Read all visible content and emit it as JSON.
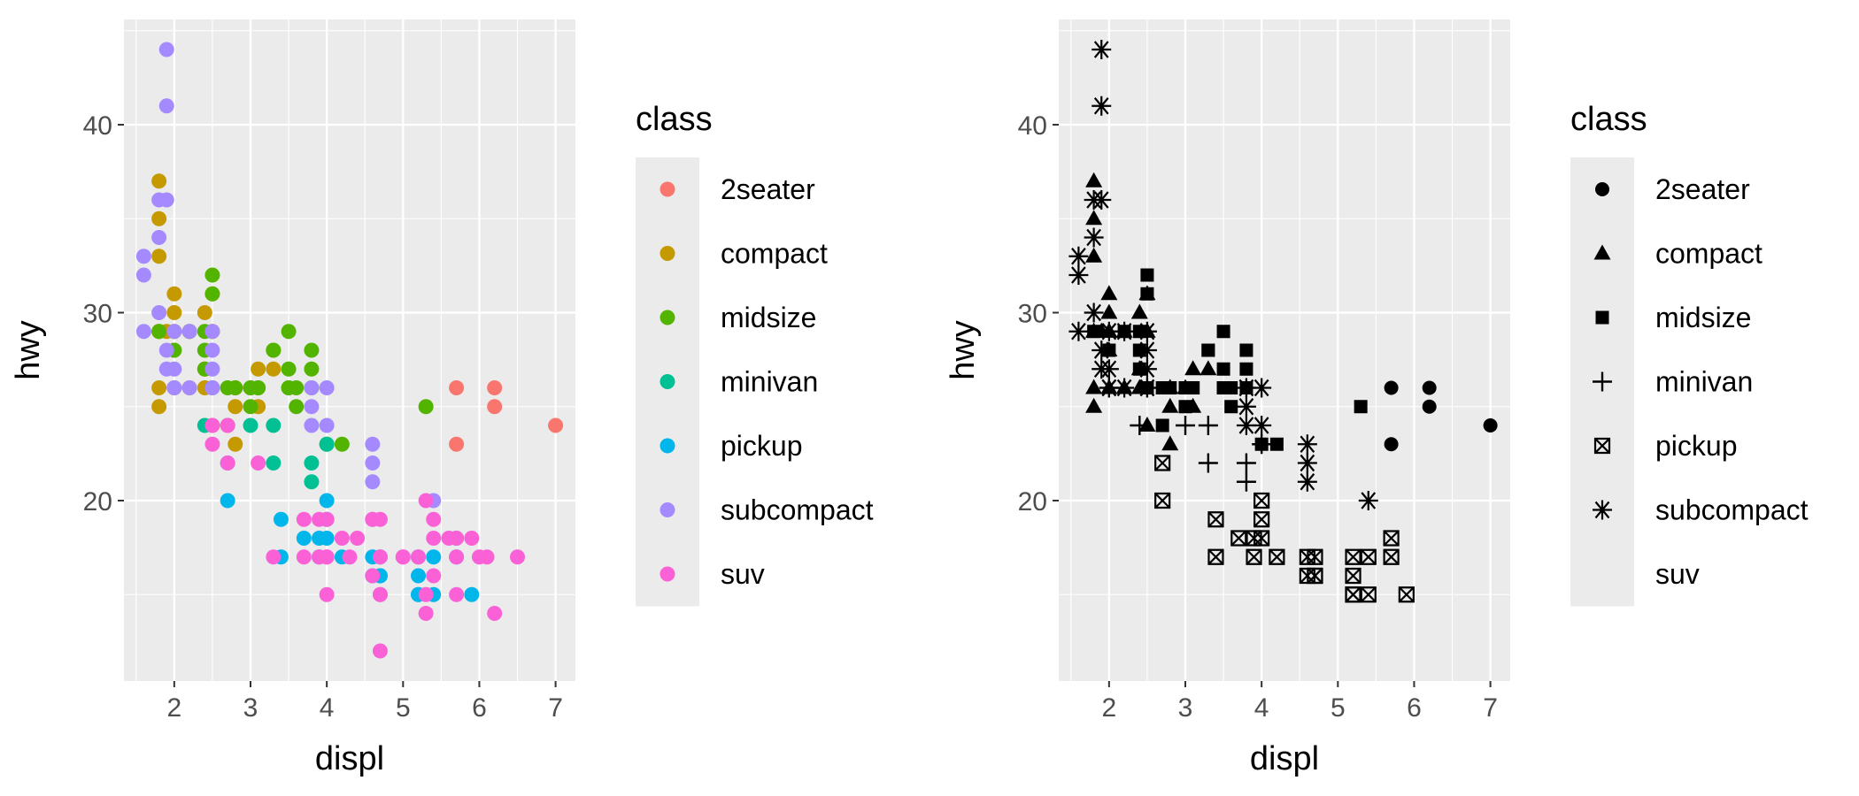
{
  "chart_data": [
    {
      "type": "scatter",
      "aesthetic": "color",
      "title": "",
      "xlabel": "displ",
      "ylabel": "hwy",
      "xlim": [
        1.34,
        7.26
      ],
      "ylim": [
        10.4,
        45.6
      ],
      "xticks": [
        2,
        3,
        4,
        5,
        6,
        7
      ],
      "yticks": [
        20,
        30,
        40
      ],
      "grid": true,
      "legend": {
        "title": "class",
        "position": "right",
        "items": [
          {
            "label": "2seater",
            "color": "#F8766D"
          },
          {
            "label": "compact",
            "color": "#C49A00"
          },
          {
            "label": "midsize",
            "color": "#53B400"
          },
          {
            "label": "minivan",
            "color": "#00C094"
          },
          {
            "label": "pickup",
            "color": "#00B6EB"
          },
          {
            "label": "subcompact",
            "color": "#A58AFF"
          },
          {
            "label": "suv",
            "color": "#FB61D7"
          }
        ]
      },
      "series": [
        {
          "name": "2seater",
          "points": [
            [
              5.7,
              26
            ],
            [
              5.7,
              23
            ],
            [
              6.2,
              26
            ],
            [
              6.2,
              25
            ],
            [
              7.0,
              24
            ]
          ]
        },
        {
          "name": "compact",
          "points": [
            [
              1.8,
              29
            ],
            [
              1.8,
              29
            ],
            [
              2.0,
              31
            ],
            [
              2.0,
              30
            ],
            [
              2.8,
              26
            ],
            [
              2.8,
              26
            ],
            [
              3.1,
              27
            ],
            [
              1.8,
              26
            ],
            [
              1.8,
              25
            ],
            [
              2.0,
              28
            ],
            [
              2.0,
              29
            ],
            [
              2.8,
              25
            ],
            [
              3.1,
              25
            ],
            [
              2.4,
              27
            ],
            [
              2.4,
              30
            ],
            [
              2.2,
              29
            ],
            [
              2.5,
              31
            ],
            [
              2.5,
              29
            ],
            [
              1.8,
              33
            ],
            [
              1.8,
              35
            ],
            [
              1.8,
              37
            ],
            [
              2.0,
              29
            ],
            [
              2.5,
              29
            ],
            [
              2.8,
              23
            ],
            [
              2.4,
              26
            ],
            [
              2.2,
              26
            ],
            [
              1.9,
              29
            ],
            [
              2.0,
              26
            ],
            [
              2.5,
              24
            ],
            [
              3.0,
              26
            ],
            [
              3.3,
              27
            ]
          ]
        },
        {
          "name": "midsize",
          "points": [
            [
              2.8,
              26
            ],
            [
              3.1,
              26
            ],
            [
              4.2,
              23
            ],
            [
              2.4,
              29
            ],
            [
              2.4,
              28
            ],
            [
              3.5,
              29
            ],
            [
              3.5,
              26
            ],
            [
              3.0,
              26
            ],
            [
              3.3,
              28
            ],
            [
              3.3,
              28
            ],
            [
              3.8,
              26
            ],
            [
              3.8,
              28
            ],
            [
              3.6,
              26
            ],
            [
              2.5,
              32
            ],
            [
              2.5,
              31
            ],
            [
              3.5,
              26
            ],
            [
              3.6,
              25
            ],
            [
              4.0,
              23
            ],
            [
              5.3,
              25
            ],
            [
              2.2,
              29
            ],
            [
              2.4,
              27
            ],
            [
              3.0,
              25
            ],
            [
              3.5,
              27
            ],
            [
              3.1,
              26
            ],
            [
              3.8,
              27
            ],
            [
              1.8,
              29
            ],
            [
              2.7,
              24
            ],
            [
              2.7,
              26
            ],
            [
              2.0,
              28
            ],
            [
              2.5,
              26
            ]
          ]
        },
        {
          "name": "minivan",
          "points": [
            [
              2.4,
              24
            ],
            [
              3.0,
              24
            ],
            [
              3.3,
              22
            ],
            [
              3.3,
              24
            ],
            [
              3.8,
              22
            ],
            [
              3.8,
              21
            ],
            [
              4.0,
              23
            ]
          ]
        },
        {
          "name": "pickup",
          "points": [
            [
              3.4,
              17
            ],
            [
              3.7,
              18
            ],
            [
              4.0,
              20
            ],
            [
              4.7,
              17
            ],
            [
              4.7,
              16
            ],
            [
              5.2,
              15
            ],
            [
              5.7,
              17
            ],
            [
              5.9,
              15
            ],
            [
              3.9,
              17
            ],
            [
              4.0,
              18
            ],
            [
              4.2,
              17
            ],
            [
              4.7,
              16
            ],
            [
              5.2,
              15
            ],
            [
              2.7,
              20
            ],
            [
              2.7,
              22
            ],
            [
              3.4,
              19
            ],
            [
              4.6,
              17
            ],
            [
              4.0,
              19
            ],
            [
              4.6,
              16
            ],
            [
              5.4,
              15
            ],
            [
              5.4,
              17
            ],
            [
              5.2,
              17
            ],
            [
              5.2,
              16
            ],
            [
              5.7,
              18
            ],
            [
              3.9,
              18
            ]
          ]
        },
        {
          "name": "subcompact",
          "points": [
            [
              1.9,
              44
            ],
            [
              1.9,
              41
            ],
            [
              1.9,
              36
            ],
            [
              1.8,
              34
            ],
            [
              1.6,
              33
            ],
            [
              1.6,
              32
            ],
            [
              1.8,
              36
            ],
            [
              1.6,
              29
            ],
            [
              2.0,
              27
            ],
            [
              2.0,
              26
            ],
            [
              2.5,
              29
            ],
            [
              2.5,
              28
            ],
            [
              2.5,
              27
            ],
            [
              2.0,
              26
            ],
            [
              2.2,
              26
            ],
            [
              2.5,
              26
            ],
            [
              3.8,
              26
            ],
            [
              3.8,
              25
            ],
            [
              4.0,
              26
            ],
            [
              4.0,
              24
            ],
            [
              4.6,
              23
            ],
            [
              4.6,
              22
            ],
            [
              4.6,
              21
            ],
            [
              5.4,
              20
            ],
            [
              1.8,
              30
            ],
            [
              2.0,
              29
            ],
            [
              1.9,
              28
            ],
            [
              2.5,
              26
            ],
            [
              1.9,
              27
            ],
            [
              3.8,
              24
            ],
            [
              2.2,
              29
            ]
          ]
        },
        {
          "name": "suv",
          "points": [
            [
              5.3,
              20
            ],
            [
              5.3,
              15
            ],
            [
              5.7,
              17
            ],
            [
              6.5,
              17
            ],
            [
              4.7,
              17
            ],
            [
              4.7,
              15
            ],
            [
              4.7,
              12
            ],
            [
              5.7,
              15
            ],
            [
              6.1,
              17
            ],
            [
              5.3,
              14
            ],
            [
              5.4,
              18
            ],
            [
              4.0,
              17
            ],
            [
              4.6,
              19
            ],
            [
              4.7,
              15
            ],
            [
              5.9,
              18
            ],
            [
              3.7,
              17
            ],
            [
              5.2,
              17
            ],
            [
              5.7,
              18
            ],
            [
              6.2,
              14
            ],
            [
              5.4,
              19
            ],
            [
              4.2,
              18
            ],
            [
              4.4,
              18
            ],
            [
              4.6,
              16
            ],
            [
              2.5,
              24
            ],
            [
              2.5,
              23
            ],
            [
              4.3,
              17
            ],
            [
              4.0,
              15
            ],
            [
              3.7,
              19
            ],
            [
              4.7,
              19
            ],
            [
              4.0,
              19
            ],
            [
              5.0,
              17
            ],
            [
              3.3,
              17
            ],
            [
              6.0,
              17
            ],
            [
              5.0,
              17
            ],
            [
              2.7,
              22
            ],
            [
              2.7,
              24
            ],
            [
              5.6,
              18
            ],
            [
              5.4,
              16
            ],
            [
              3.9,
              17
            ],
            [
              3.9,
              19
            ],
            [
              4.0,
              17
            ],
            [
              4.6,
              19
            ],
            [
              3.1,
              22
            ]
          ]
        }
      ]
    },
    {
      "type": "scatter",
      "aesthetic": "shape",
      "title": "",
      "xlabel": "displ",
      "ylabel": "hwy",
      "xlim": [
        1.34,
        7.26
      ],
      "ylim": [
        10.4,
        45.6
      ],
      "xticks": [
        2,
        3,
        4,
        5,
        6,
        7
      ],
      "yticks": [
        20,
        30,
        40
      ],
      "grid": true,
      "legend": {
        "title": "class",
        "position": "right",
        "items": [
          {
            "label": "2seater",
            "shape": "circle"
          },
          {
            "label": "compact",
            "shape": "triangle"
          },
          {
            "label": "midsize",
            "shape": "square"
          },
          {
            "label": "minivan",
            "shape": "plus"
          },
          {
            "label": "pickup",
            "shape": "boxed-x"
          },
          {
            "label": "subcompact",
            "shape": "asterisk"
          },
          {
            "label": "suv",
            "shape": "none"
          }
        ]
      },
      "series": "same points as the color panel; suv points are not drawn (no shape)"
    }
  ],
  "colors": {
    "panel_background": "#EBEBEB",
    "grid_line": "#FFFFFF",
    "point_black": "#000000"
  }
}
